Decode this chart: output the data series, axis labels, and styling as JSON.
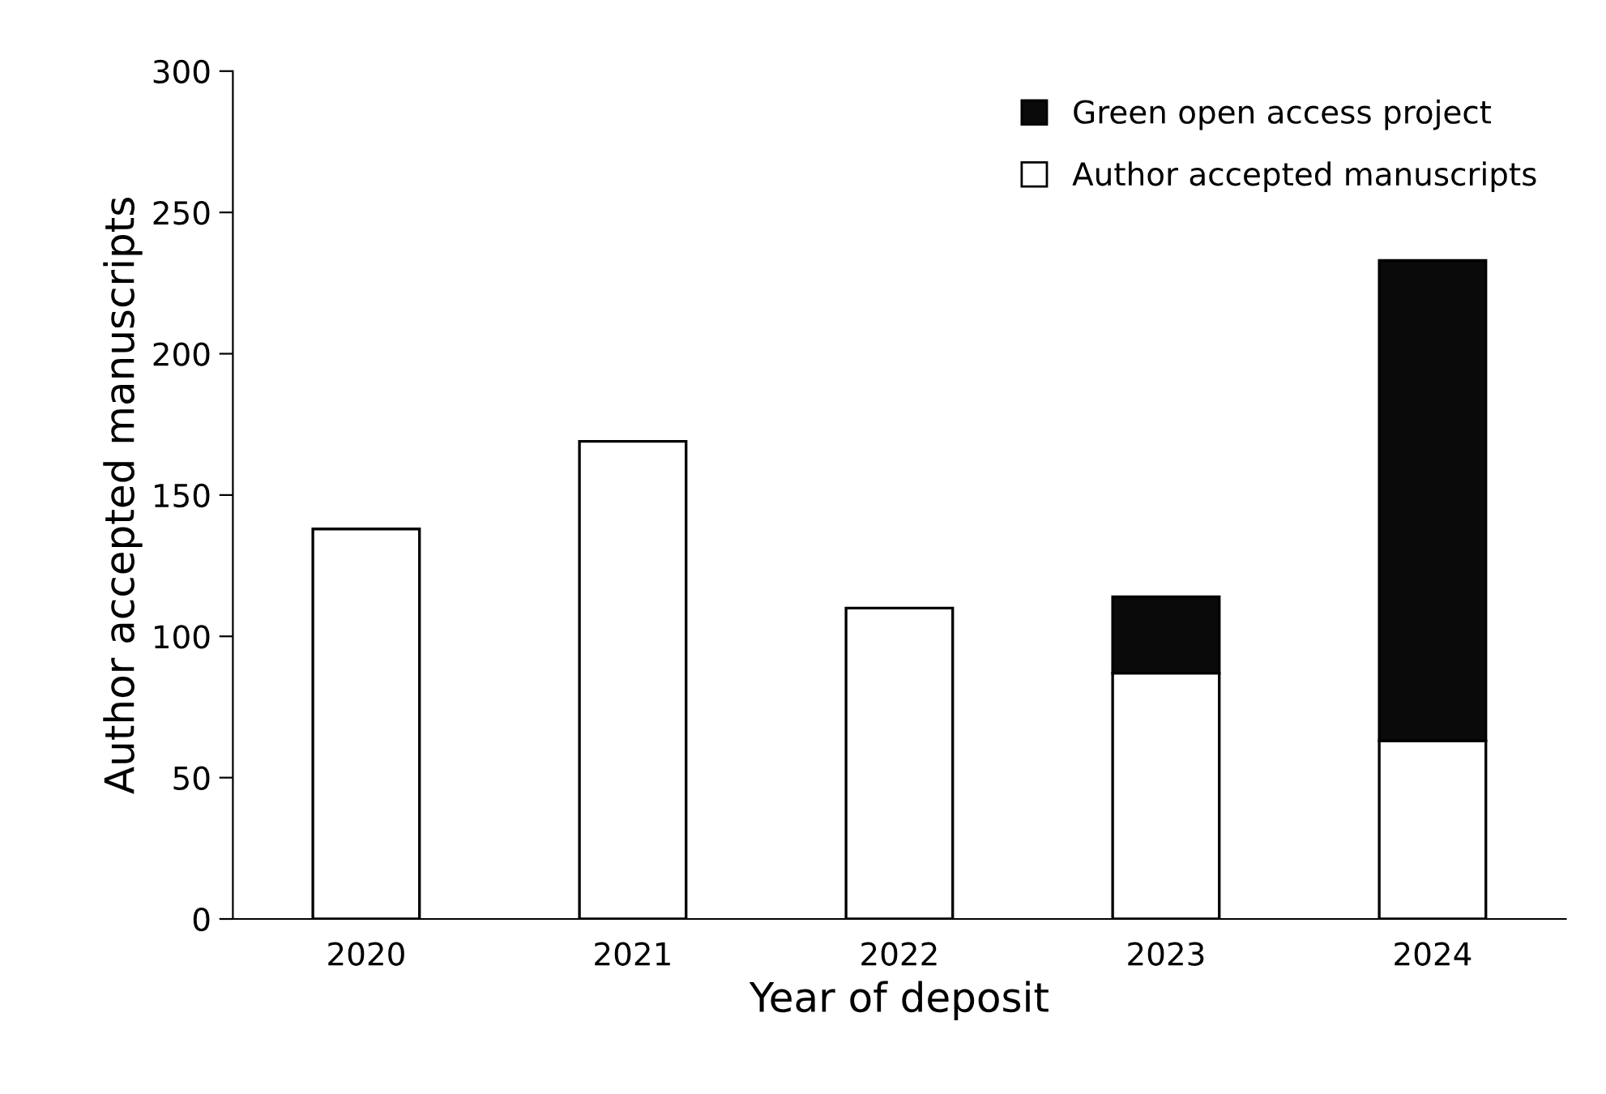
{
  "chart_data": {
    "type": "bar",
    "xlabel": "Year of deposit",
    "ylabel": "Author accepted manuscripts",
    "categories": [
      "2020",
      "2021",
      "2022",
      "2023",
      "2024"
    ],
    "stacked": true,
    "series": [
      {
        "name": "Author accepted manuscripts",
        "color": "#ffffff",
        "values": [
          138,
          169,
          110,
          87,
          63
        ]
      },
      {
        "name": "Green open access project",
        "color": "#0a0a0a",
        "values": [
          null,
          null,
          null,
          27,
          170
        ]
      }
    ],
    "ylim": [
      0,
      300
    ],
    "yticks": [
      0,
      50,
      100,
      150,
      200,
      250,
      300
    ],
    "grid": false,
    "legend": "top right"
  }
}
